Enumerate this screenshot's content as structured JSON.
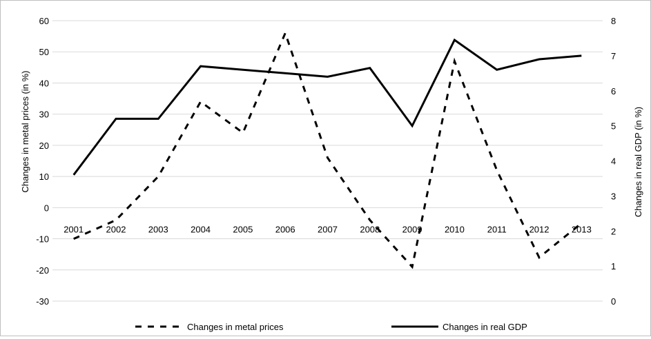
{
  "chart_data": {
    "type": "line",
    "categories": [
      "2001",
      "2002",
      "2003",
      "2004",
      "2005",
      "2006",
      "2007",
      "2008",
      "2009",
      "2010",
      "2011",
      "2012",
      "2013"
    ],
    "series": [
      {
        "name": "Changes in metal prices",
        "axis": "left",
        "style": "dashed",
        "values": [
          -10,
          -4,
          10,
          34,
          24,
          56,
          16,
          -4,
          -19,
          47,
          12,
          -16,
          -5
        ]
      },
      {
        "name": "Changes in real GDP",
        "axis": "right",
        "style": "solid",
        "values": [
          3.6,
          5.2,
          5.2,
          6.7,
          6.6,
          6.5,
          6.4,
          6.65,
          5.0,
          7.45,
          6.6,
          6.9,
          7.0
        ]
      }
    ],
    "ylabel_left": "Changes in metal prices (in %)",
    "ylabel_right": "Changes in real GDP (in %)",
    "ylim_left": [
      -30,
      60
    ],
    "ylim_right": [
      0,
      8
    ],
    "yticks_left": [
      "60",
      "50",
      "40",
      "30",
      "20",
      "10",
      "0",
      "-10",
      "-20",
      "-30"
    ],
    "yticks_right": [
      "8",
      "7",
      "6",
      "5",
      "4",
      "3",
      "2",
      "1",
      "0"
    ],
    "grid": true,
    "legend_position": "bottom",
    "legend": [
      {
        "label": "Changes in metal prices",
        "style": "dashed"
      },
      {
        "label": "Changes in real GDP",
        "style": "solid"
      }
    ]
  }
}
